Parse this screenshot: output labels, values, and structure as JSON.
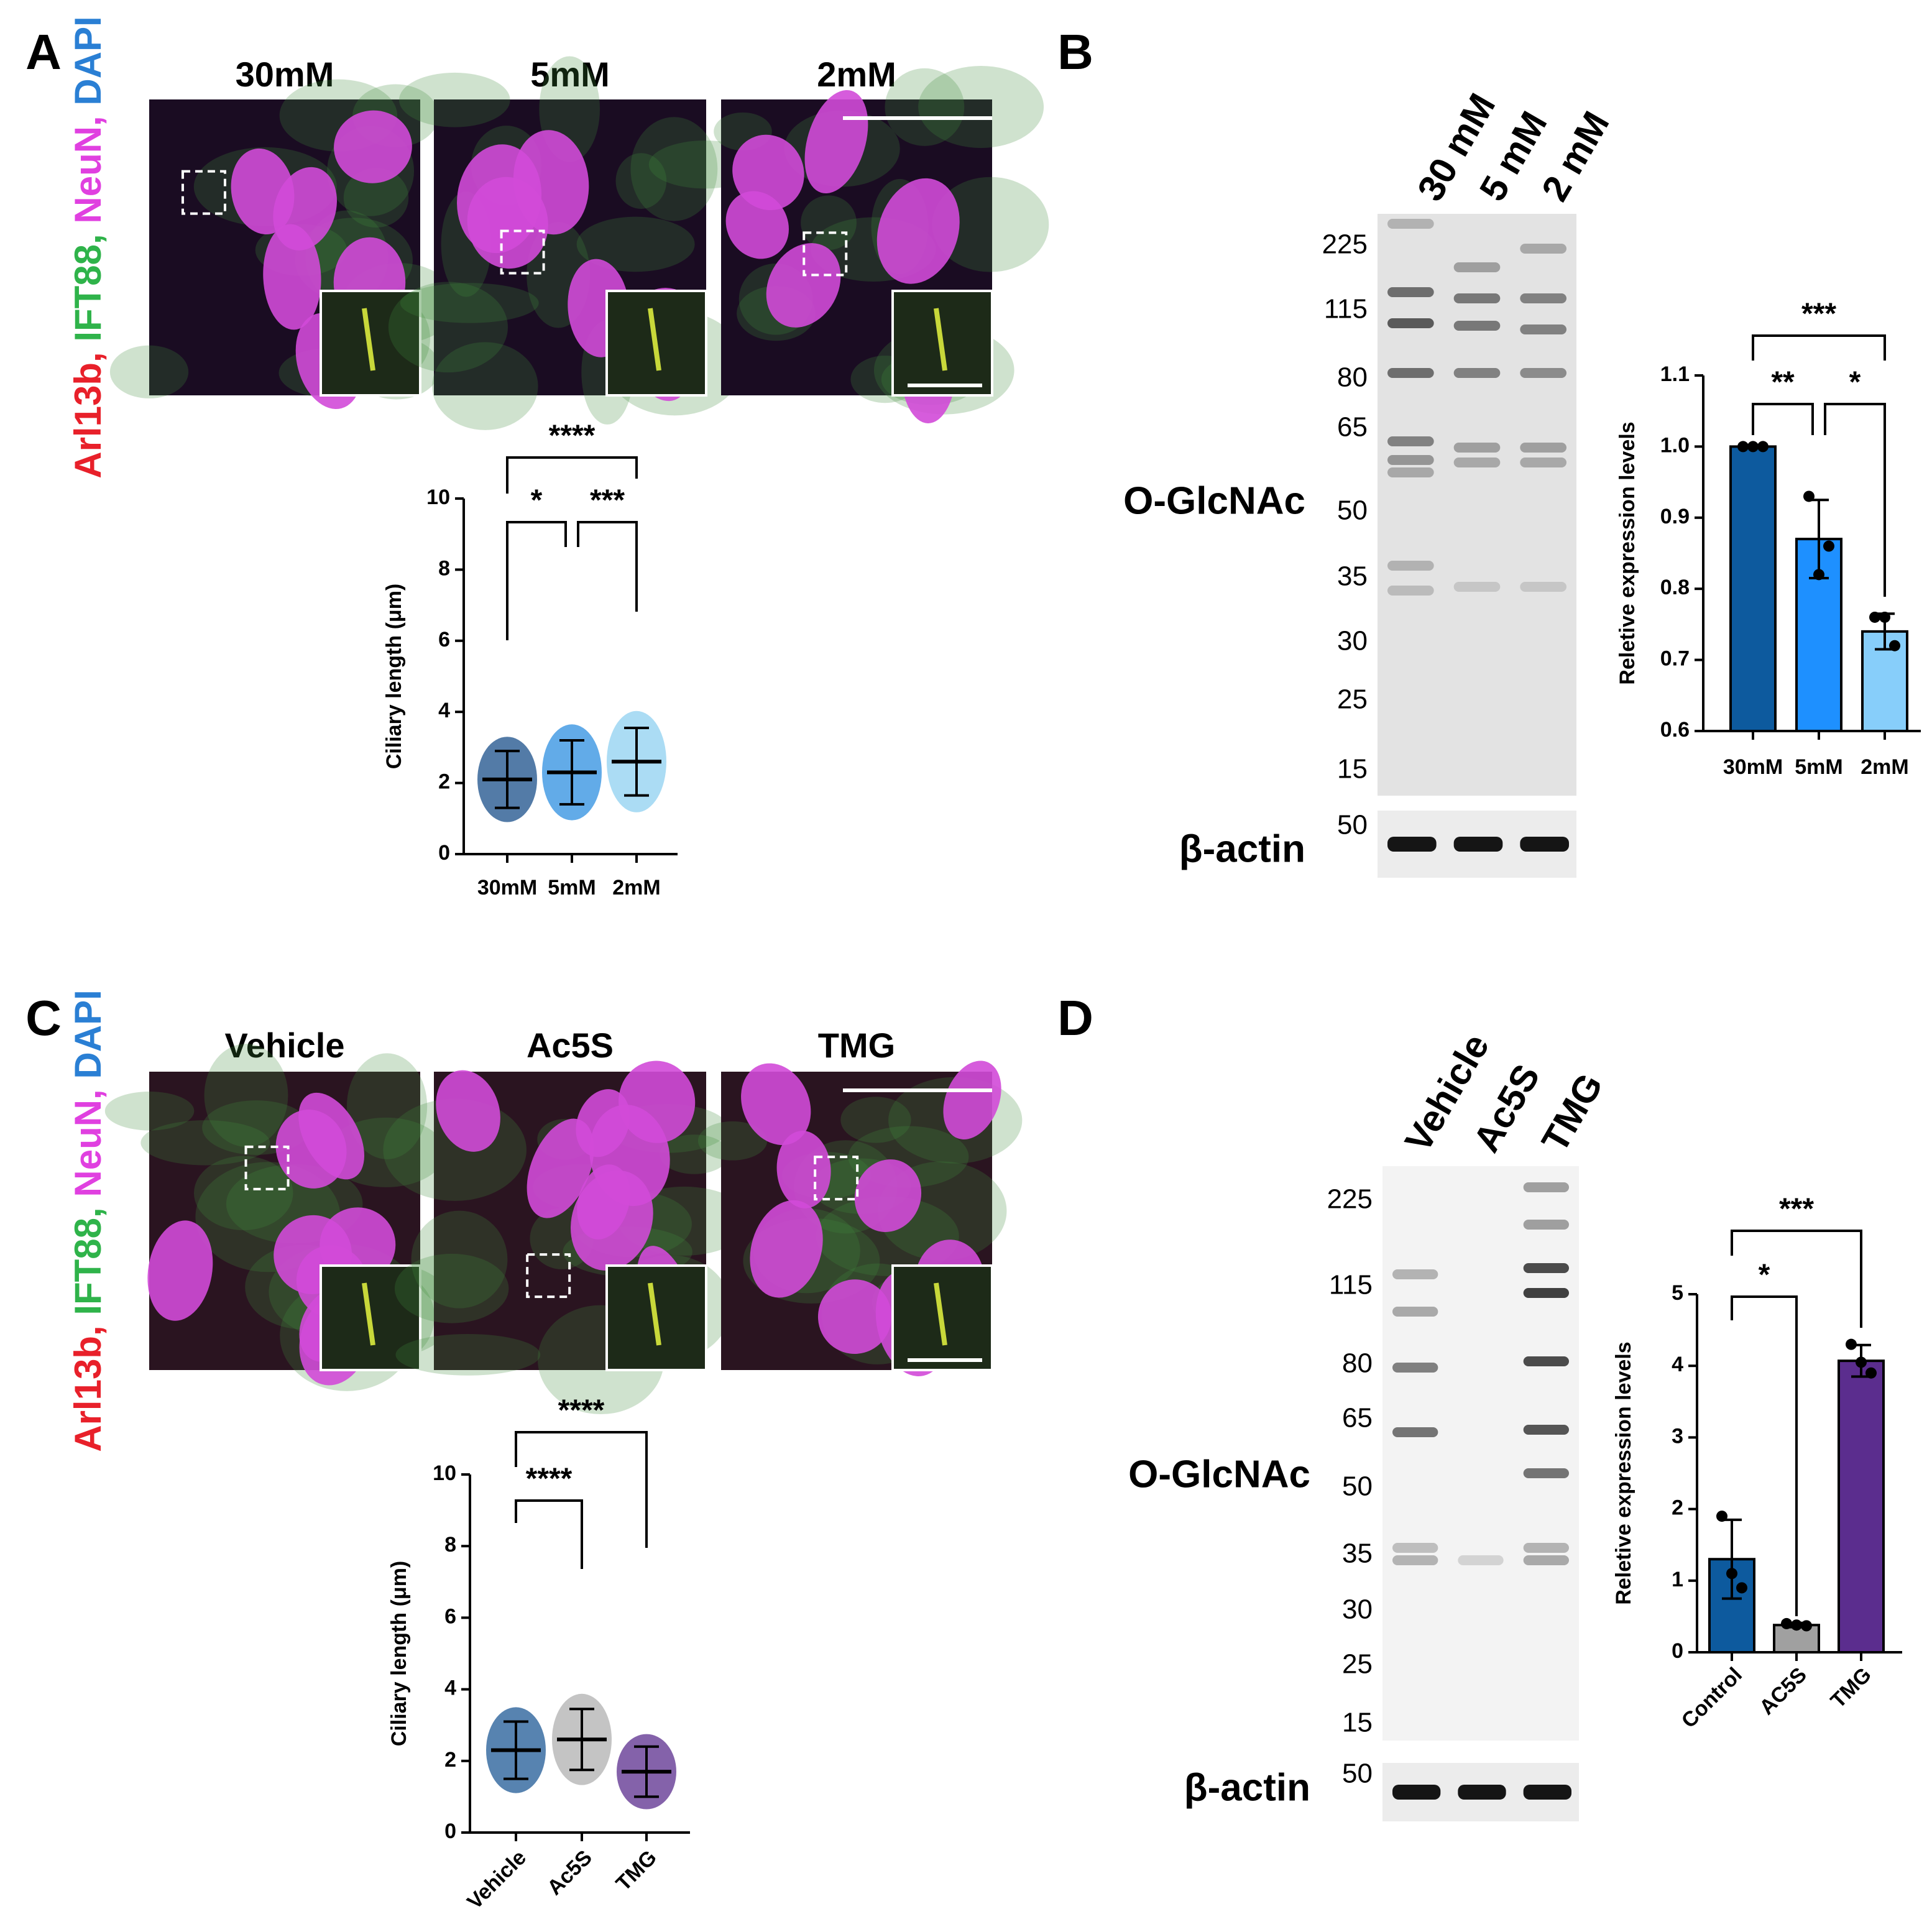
{
  "panel_labels": [
    "A",
    "B",
    "C",
    "D"
  ],
  "stain_label": [
    "Arl13b,",
    "IFT88,",
    "NeuN,",
    "DAPI"
  ],
  "micrographs": [
    {
      "titles": [
        "30mM",
        "5mM",
        "2mM"
      ]
    },
    {
      "titles": [
        "Vehicle",
        "Ac5S",
        "TMG"
      ]
    }
  ],
  "blots": [
    {
      "lanes": [
        "30 mM",
        "5 mM",
        "2 mM"
      ],
      "markers": [
        "225",
        "115",
        "80",
        "65",
        "50",
        "35",
        "30",
        "25",
        "15"
      ],
      "target": "O-GlcNAc",
      "loading": "β-actin",
      "loading_marker": "50"
    },
    {
      "lanes": [
        "Vehicle",
        "Ac5S",
        "TMG"
      ],
      "markers": [
        "225",
        "115",
        "80",
        "65",
        "50",
        "35",
        "30",
        "25",
        "15"
      ],
      "target": "O-GlcNAc",
      "loading": "β-actin",
      "loading_marker": "50"
    }
  ],
  "chart_data": [
    {
      "type": "dotplot",
      "ylabel": "Ciliary length (μm)",
      "categories": [
        "30mM",
        "5mM",
        "2mM"
      ],
      "values": [
        2.1,
        2.3,
        2.6
      ],
      "errors": [
        0.8,
        0.9,
        0.95
      ],
      "colors": [
        "#1a4f8a",
        "#2e8fe0",
        "#8fd0f0"
      ],
      "ylim": [
        0,
        10
      ],
      "yticks": [
        0,
        2,
        4,
        6,
        8,
        10
      ],
      "significance": [
        {
          "groups": [
            "30mM",
            "5mM"
          ],
          "label": "*"
        },
        {
          "groups": [
            "5mM",
            "2mM"
          ],
          "label": "***"
        },
        {
          "groups": [
            "30mM",
            "2mM"
          ],
          "label": "****"
        }
      ]
    },
    {
      "type": "bar",
      "ylabel": "Reletive expression levels",
      "categories": [
        "30mM",
        "5mM",
        "2mM"
      ],
      "values": [
        1.0,
        0.87,
        0.74
      ],
      "errors": [
        0.0,
        0.055,
        0.025
      ],
      "points": [
        [
          1.0,
          1.0,
          1.0
        ],
        [
          0.93,
          0.82,
          0.86
        ],
        [
          0.76,
          0.76,
          0.72
        ]
      ],
      "colors": [
        "#0d5a9e",
        "#1e90ff",
        "#87cefa"
      ],
      "ylim": [
        0.6,
        1.1
      ],
      "yticks": [
        0.6,
        0.7,
        0.8,
        0.9,
        {
          "value": 1.0,
          "label": "1.0"
        },
        1.1
      ],
      "significance": [
        {
          "groups": [
            "30mM",
            "5mM"
          ],
          "label": "**"
        },
        {
          "groups": [
            "5mM",
            "2mM"
          ],
          "label": "*"
        },
        {
          "groups": [
            "30mM",
            "2mM"
          ],
          "label": "***"
        }
      ]
    },
    {
      "type": "dotplot",
      "ylabel": "Ciliary length (μm)",
      "categories": [
        "Vehicle",
        "Ac5S",
        "TMG"
      ],
      "values": [
        2.3,
        2.6,
        1.7
      ],
      "errors": [
        0.8,
        0.85,
        0.7
      ],
      "colors": [
        "#1f5a96",
        "#b0b0b0",
        "#5b2d8e"
      ],
      "ylim": [
        0,
        10
      ],
      "yticks": [
        0,
        2,
        4,
        6,
        8,
        10
      ],
      "significance": [
        {
          "groups": [
            "Vehicle",
            "TMG"
          ],
          "label": "****"
        },
        {
          "groups": [
            "Vehicle",
            "Ac5S"
          ],
          "label": "****"
        }
      ]
    },
    {
      "type": "bar",
      "ylabel": "Reletive expression levels",
      "categories": [
        "Control",
        "AC5S",
        "TMG"
      ],
      "values": [
        1.3,
        0.38,
        4.07
      ],
      "errors": [
        0.55,
        0.03,
        0.22
      ],
      "points": [
        [
          1.9,
          1.1,
          0.9
        ],
        [
          0.4,
          0.38,
          0.37
        ],
        [
          4.3,
          4.05,
          3.9
        ]
      ],
      "colors": [
        "#0d5a9e",
        "#a0a0a0",
        "#5b2d8e"
      ],
      "ylim": [
        0,
        5
      ],
      "yticks": [
        0,
        1,
        2,
        3,
        4,
        5
      ],
      "significance": [
        {
          "groups": [
            "Control",
            "TMG"
          ],
          "label": "***"
        },
        {
          "groups": [
            "Control",
            "AC5S"
          ],
          "label": "*"
        }
      ]
    }
  ]
}
